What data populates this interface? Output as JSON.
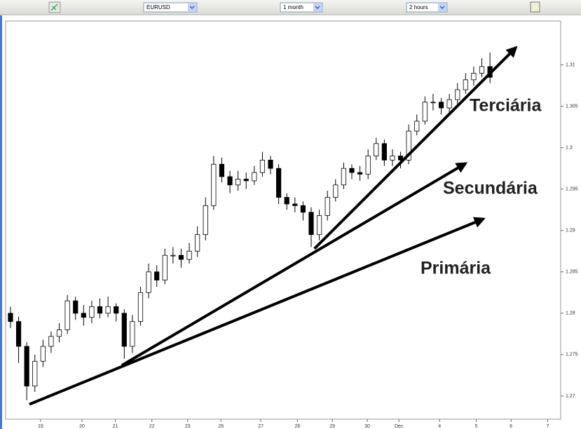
{
  "toolbar": {
    "symbol": "EURUSD",
    "period": "1 month",
    "interval": "2 hours"
  },
  "chart_data": {
    "type": "candlestick",
    "open": [
      1.28,
      1.279,
      1.276,
      1.2712,
      1.2742,
      1.276,
      1.2772,
      1.278,
      1.2815,
      1.28,
      1.2795,
      1.2808,
      1.28,
      1.2808,
      1.28,
      1.276,
      1.279,
      1.2825,
      1.285,
      1.284,
      1.287,
      1.287,
      1.2865,
      1.2875,
      1.2895,
      1.293,
      1.298,
      1.2965,
      1.2955,
      1.2962,
      1.296,
      1.297,
      1.2985,
      1.2975,
      1.294,
      1.2932,
      1.293,
      1.2922,
      1.2895,
      1.2918,
      1.294,
      1.2955,
      1.2975,
      1.297,
      1.2968,
      1.299,
      1.3005,
      1.2985,
      1.299,
      1.2985,
      1.302,
      1.3032,
      1.3055,
      1.3055,
      1.3048,
      1.3058,
      1.307,
      1.3082,
      1.309,
      1.3098
    ],
    "high": [
      1.2808,
      1.2796,
      1.2765,
      1.275,
      1.2768,
      1.2778,
      1.2788,
      1.2822,
      1.282,
      1.281,
      1.2815,
      1.2818,
      1.282,
      1.2812,
      1.2805,
      1.2798,
      1.2832,
      1.286,
      1.2858,
      1.2878,
      1.288,
      1.2878,
      1.2885,
      1.2905,
      1.294,
      1.299,
      1.2988,
      1.2972,
      1.2972,
      1.297,
      1.2978,
      1.2995,
      1.299,
      1.298,
      1.2945,
      1.294,
      1.2935,
      1.2928,
      1.2925,
      1.2948,
      1.2962,
      1.2982,
      1.298,
      1.2978,
      1.2998,
      1.3012,
      1.301,
      1.2998,
      1.2995,
      1.3028,
      1.304,
      1.3062,
      1.3065,
      1.306,
      1.3065,
      1.3078,
      1.309,
      1.3098,
      1.3108,
      1.3115
    ],
    "low": [
      1.2782,
      1.274,
      1.2695,
      1.2705,
      1.2735,
      1.2752,
      1.2765,
      1.2775,
      1.2792,
      1.2785,
      1.2788,
      1.2794,
      1.2795,
      1.279,
      1.2745,
      1.2752,
      1.2785,
      1.2818,
      1.2832,
      1.2835,
      1.286,
      1.2855,
      1.286,
      1.2868,
      1.2888,
      1.2925,
      1.2958,
      1.2945,
      1.2948,
      1.295,
      1.2955,
      1.2965,
      1.2968,
      1.2932,
      1.2925,
      1.2922,
      1.2912,
      1.288,
      1.2888,
      1.2912,
      1.2935,
      1.295,
      1.2962,
      1.296,
      1.2962,
      1.2985,
      1.2978,
      1.2978,
      1.2975,
      1.298,
      1.3015,
      1.3028,
      1.3045,
      1.304,
      1.3042,
      1.3052,
      1.3065,
      1.3075,
      1.3085,
      1.3078
    ],
    "close": [
      1.279,
      1.276,
      1.2712,
      1.2742,
      1.276,
      1.2772,
      1.278,
      1.2815,
      1.28,
      1.2795,
      1.2808,
      1.28,
      1.2808,
      1.28,
      1.276,
      1.279,
      1.2825,
      1.285,
      1.284,
      1.287,
      1.287,
      1.2865,
      1.2875,
      1.2895,
      1.293,
      1.298,
      1.2965,
      1.2955,
      1.2962,
      1.296,
      1.297,
      1.2985,
      1.2975,
      1.294,
      1.2932,
      1.293,
      1.2922,
      1.2895,
      1.2918,
      1.294,
      1.2955,
      1.2975,
      1.297,
      1.2968,
      1.299,
      1.3005,
      1.2985,
      1.299,
      1.2985,
      1.302,
      1.3032,
      1.3055,
      1.3055,
      1.3048,
      1.3058,
      1.307,
      1.3082,
      1.309,
      1.3098,
      1.3085
    ],
    "up_color": "#ffffff",
    "down_color": "#000000",
    "xlim": [
      -0.6,
      67.7
    ],
    "xticks": [
      {
        "value": 3.7,
        "label": "19"
      },
      {
        "value": 8.8,
        "label": "20"
      },
      {
        "value": 12.9,
        "label": "21"
      },
      {
        "value": 17.4,
        "label": "22"
      },
      {
        "value": 21.8,
        "label": "23"
      },
      {
        "value": 25.9,
        "label": "26"
      },
      {
        "value": 30.8,
        "label": "27"
      },
      {
        "value": 35.3,
        "label": "28"
      },
      {
        "value": 39.6,
        "label": "29"
      },
      {
        "value": 43.9,
        "label": "30"
      },
      {
        "value": 47.8,
        "label": "Dec"
      },
      {
        "value": 52.8,
        "label": "4"
      },
      {
        "value": 57.3,
        "label": "5"
      },
      {
        "value": 61.6,
        "label": "6"
      },
      {
        "value": 66.1,
        "label": "7"
      }
    ],
    "ylim": [
      1.2672,
      1.3153
    ],
    "yticks": [
      1.27,
      1.275,
      1.28,
      1.285,
      1.29,
      1.295,
      1.3,
      1.305,
      1.31
    ],
    "grid": false,
    "trendlines": [
      {
        "label": "Primária",
        "start": [
          2.33,
          1.269
        ],
        "end": [
          58.2,
          1.2914
        ]
      },
      {
        "label": "Secundária",
        "start": [
          13.7,
          1.2737
        ],
        "end": [
          56.0,
          1.2981
        ]
      },
      {
        "label": "Terciária",
        "start": [
          37.4,
          1.2878
        ],
        "end": [
          62.2,
          1.3121
        ]
      }
    ]
  }
}
